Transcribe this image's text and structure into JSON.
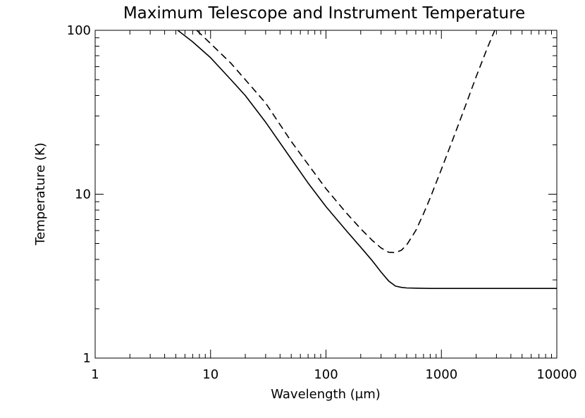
{
  "chart_data": {
    "type": "line",
    "title": "Maximum Telescope and Instrument Temperature",
    "xlabel": "Wavelength (μm)",
    "ylabel": "Temperature (K)",
    "xscale": "log",
    "yscale": "log",
    "xlim": [
      1,
      10000
    ],
    "ylim": [
      1,
      100
    ],
    "xticks": [
      "1",
      "10",
      "100",
      "1000",
      "10000"
    ],
    "yticks": [
      "1",
      "10",
      "100"
    ],
    "grid": false,
    "legend": "none",
    "series": [
      {
        "style": "solid",
        "color": "#000000",
        "x": [
          5.2,
          7,
          10,
          15,
          20,
          30,
          50,
          70,
          100,
          150,
          200,
          250,
          300,
          350,
          400,
          450,
          500,
          600,
          800,
          1000,
          2000,
          5000,
          10000
        ],
        "y": [
          100,
          85,
          68,
          50,
          40,
          27.5,
          16.4,
          11.7,
          8.4,
          6.0,
          4.75,
          3.95,
          3.35,
          2.95,
          2.75,
          2.7,
          2.68,
          2.67,
          2.66,
          2.66,
          2.66,
          2.66,
          2.66
        ]
      },
      {
        "style": "dashed",
        "color": "#000000",
        "x": [
          7.6,
          10,
          15,
          20,
          30,
          50,
          70,
          100,
          150,
          200,
          250,
          300,
          350,
          400,
          450,
          500,
          600,
          700,
          800,
          1000,
          1300,
          1600,
          2000,
          2500,
          2900
        ],
        "y": [
          100,
          83,
          63,
          50,
          36,
          21,
          15.2,
          10.8,
          7.7,
          6.15,
          5.25,
          4.7,
          4.42,
          4.4,
          4.55,
          4.9,
          6.0,
          7.6,
          9.5,
          14.2,
          23,
          34,
          52,
          78,
          100
        ]
      }
    ]
  }
}
